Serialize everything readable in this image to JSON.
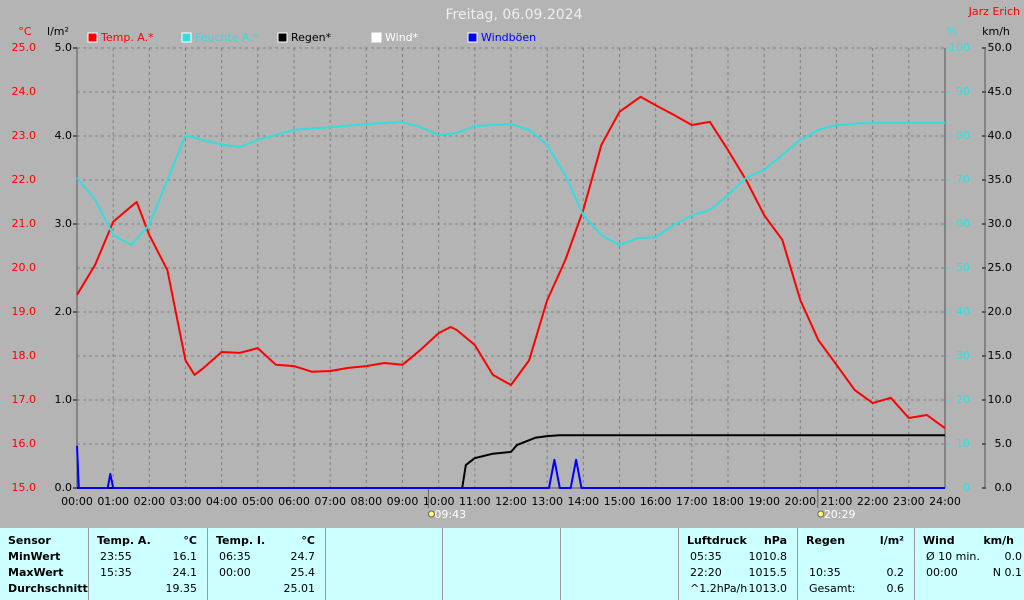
{
  "chart_data": {
    "type": "line",
    "title": "Freitag, 06.09.2024",
    "author": "Jarz Erich",
    "y_unit": "°C",
    "y_rain_unit": "l/m²",
    "y2_unit": "%",
    "y3_unit": "km/h",
    "xlim": [
      0,
      24
    ],
    "xticks": [
      {
        "value": 0,
        "label": "00:00"
      },
      {
        "value": 1,
        "label": "01:00"
      },
      {
        "value": 2,
        "label": "02:00"
      },
      {
        "value": 3,
        "label": "03:00"
      },
      {
        "value": 4,
        "label": "04:00"
      },
      {
        "value": 5,
        "label": "05:00"
      },
      {
        "value": 6,
        "label": "06:00"
      },
      {
        "value": 7,
        "label": "07:00"
      },
      {
        "value": 8,
        "label": "08:00"
      },
      {
        "value": 9,
        "label": "09:00"
      },
      {
        "value": 10,
        "label": "10:00"
      },
      {
        "value": 11,
        "label": "11:00"
      },
      {
        "value": 12,
        "label": "12:00"
      },
      {
        "value": 13,
        "label": "13:00"
      },
      {
        "value": 14,
        "label": "14:00"
      },
      {
        "value": 15,
        "label": "15:00"
      },
      {
        "value": 16,
        "label": "16:00"
      },
      {
        "value": 17,
        "label": "17:00"
      },
      {
        "value": 18,
        "label": "18:00"
      },
      {
        "value": 19,
        "label": "19:00"
      },
      {
        "value": 20,
        "label": "20:00"
      },
      {
        "value": 21,
        "label": "21:00"
      },
      {
        "value": 22,
        "label": "22:00"
      },
      {
        "value": 23,
        "label": "23:00"
      },
      {
        "value": 24,
        "label": "24:00"
      }
    ],
    "ylim": [
      15,
      25
    ],
    "yticks": [
      {
        "value": 15,
        "label": "15.0"
      },
      {
        "value": 16,
        "label": "16.0"
      },
      {
        "value": 17,
        "label": "17.0"
      },
      {
        "value": 18,
        "label": "18.0"
      },
      {
        "value": 19,
        "label": "19.0"
      },
      {
        "value": 20,
        "label": "20.0"
      },
      {
        "value": 21,
        "label": "21.0"
      },
      {
        "value": 22,
        "label": "22.0"
      },
      {
        "value": 23,
        "label": "23.0"
      },
      {
        "value": 24,
        "label": "24.0"
      },
      {
        "value": 25,
        "label": "25.0"
      }
    ],
    "y_rain_lim": [
      0,
      5
    ],
    "y_rain_ticks": [
      {
        "value": 0,
        "label": "0.0"
      },
      {
        "value": 1,
        "label": "1.0"
      },
      {
        "value": 2,
        "label": "2.0"
      },
      {
        "value": 3,
        "label": "3.0"
      },
      {
        "value": 4,
        "label": "4.0"
      },
      {
        "value": 5,
        "label": "5.0"
      }
    ],
    "y2lim": [
      0,
      100
    ],
    "y2ticks": [
      0,
      10,
      20,
      30,
      40,
      50,
      60,
      70,
      80,
      90,
      100
    ],
    "y3lim": [
      0,
      50
    ],
    "y3ticks": [
      {
        "value": 0,
        "label": "0.0"
      },
      {
        "value": 5,
        "label": "5.0"
      },
      {
        "value": 10,
        "label": "10.0"
      },
      {
        "value": 15,
        "label": "15.0"
      },
      {
        "value": 20,
        "label": "20.0"
      },
      {
        "value": 25,
        "label": "25.0"
      },
      {
        "value": 30,
        "label": "30.0"
      },
      {
        "value": 35,
        "label": "35.0"
      },
      {
        "value": 40,
        "label": "40.0"
      },
      {
        "value": 45,
        "label": "45.0"
      },
      {
        "value": 50,
        "label": "50.0"
      }
    ],
    "grid": true,
    "sun_markers": [
      {
        "value": 9.7167,
        "label": "09:43"
      },
      {
        "value": 20.4833,
        "label": "20:29"
      }
    ],
    "series": [
      {
        "name": "Temp. A.*",
        "color": "#ff0000",
        "axis": "y",
        "x": [
          0,
          0.5,
          1,
          1.5,
          1.65,
          2,
          2.5,
          3,
          3.25,
          3.5,
          4,
          4.5,
          5,
          5.5,
          6,
          6.5,
          7,
          7.5,
          8,
          8.5,
          9,
          9.5,
          10,
          10.33,
          10.5,
          11,
          11.5,
          12,
          12.5,
          13,
          13.5,
          14,
          14.5,
          15,
          15.58,
          16,
          16.5,
          17,
          17.5,
          18,
          18.5,
          19,
          19.5,
          20,
          20.5,
          21,
          21.5,
          22,
          22.5,
          23,
          23.5,
          24
        ],
        "values": [
          19.39,
          20.07,
          21.05,
          21.4,
          21.5,
          20.75,
          19.95,
          17.9,
          17.57,
          17.73,
          18.09,
          18.07,
          18.18,
          17.8,
          17.77,
          17.64,
          17.66,
          17.73,
          17.77,
          17.84,
          17.8,
          18.14,
          18.52,
          18.66,
          18.59,
          18.25,
          17.57,
          17.34,
          17.9,
          19.27,
          20.18,
          21.32,
          22.8,
          23.55,
          23.89,
          23.7,
          23.48,
          23.25,
          23.32,
          22.68,
          22.0,
          21.2,
          20.64,
          19.27,
          18.36,
          17.8,
          17.23,
          16.93,
          17.05,
          16.59,
          16.66,
          16.36
        ]
      },
      {
        "name": "Feuchte A.*",
        "color": "#33dddd",
        "axis": "y2",
        "x": [
          0,
          0.5,
          1,
          1.5,
          2,
          2.5,
          3,
          3.5,
          4,
          4.5,
          5,
          5.5,
          6,
          7,
          8,
          9,
          9.5,
          10,
          10.5,
          11,
          12,
          12.5,
          13,
          13.5,
          14,
          14.5,
          15,
          15.5,
          16,
          16.5,
          17,
          17.5,
          18,
          18.5,
          19,
          19.5,
          20,
          20.5,
          21,
          22,
          24
        ],
        "values": [
          70.5,
          65.5,
          57.5,
          55.2,
          59.8,
          70,
          80.2,
          79.1,
          78,
          77.5,
          79.1,
          80.2,
          81.4,
          82,
          82.7,
          83.2,
          82,
          80.2,
          80.7,
          82.3,
          82.7,
          81.4,
          78,
          71.1,
          62,
          57.5,
          55.2,
          56.8,
          57,
          59.8,
          62,
          63.2,
          66.6,
          70.5,
          72.3,
          75.7,
          79.1,
          81.4,
          82.5,
          83,
          83
        ]
      },
      {
        "name": "Regen*",
        "color": "#000000",
        "axis": "y_rain",
        "x": [
          0,
          10.65,
          10.75,
          11,
          11.5,
          12,
          12.17,
          12.67,
          13,
          13.33,
          24
        ],
        "values": [
          0,
          0,
          0.26,
          0.34,
          0.39,
          0.41,
          0.49,
          0.57,
          0.59,
          0.6,
          0.6
        ]
      },
      {
        "name": "Wind*",
        "color": "#ffffff",
        "axis": "y3",
        "x": [],
        "values": []
      },
      {
        "name": "Windböen",
        "color": "#0000ff",
        "axis": "y3",
        "x": [
          0,
          0.05,
          0.85,
          0.92,
          1.0,
          13.05,
          13.2,
          13.35,
          13.65,
          13.8,
          13.95,
          24
        ],
        "values": [
          4.8,
          0,
          0,
          1.6,
          0,
          0,
          3.2,
          0,
          0,
          3.2,
          0,
          0
        ]
      }
    ]
  },
  "table": {
    "row_labels": [
      "Sensor",
      "MinWert",
      "MaxWert",
      "Durchschnitt"
    ],
    "sections": [
      {
        "title": "Temp. A.",
        "unit": "°C",
        "rows": [
          {
            "time": "23:55",
            "value": "16.1"
          },
          {
            "time": "15:35",
            "value": "24.1"
          },
          {
            "value": "19.35"
          }
        ]
      },
      {
        "title": "Temp. I.",
        "unit": "°C",
        "rows": [
          {
            "time": "06:35",
            "value": "24.7"
          },
          {
            "time": "00:00",
            "value": "25.4"
          },
          {
            "value": "25.01"
          }
        ]
      },
      {
        "title": "Luftdruck",
        "unit": "hPa",
        "rows": [
          {
            "time": "05:35",
            "value": "1010.8"
          },
          {
            "time": "22:20",
            "value": "1015.5"
          },
          {
            "time": "^1.2hPa/h",
            "value": "1013.0"
          }
        ]
      },
      {
        "title": "Regen",
        "unit": "l/m²",
        "rows": [
          {},
          {
            "time": "10:35",
            "value": "0.2"
          },
          {
            "time": "Gesamt:",
            "value": "0.6"
          }
        ]
      },
      {
        "title": "Wind",
        "unit": "km/h",
        "rows": [
          {
            "time": "Ø 10 min.",
            "value": "0.0"
          },
          {
            "time": "00:00",
            "value": "N 0.1"
          },
          {}
        ]
      }
    ]
  }
}
